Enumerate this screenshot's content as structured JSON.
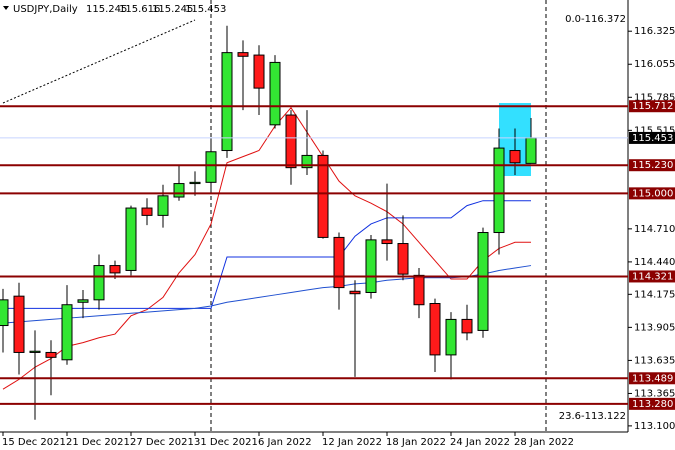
{
  "chart_data": {
    "type": "candlestick",
    "symbol": "USDJPY,Daily",
    "categories": [
      "15 Dec 2021",
      null,
      null,
      null,
      "21 Dec 2021",
      null,
      null,
      null,
      "27 Dec 2021",
      null,
      null,
      null,
      "31 Dec 2021",
      null,
      null,
      null,
      "6 Jan 2022",
      null,
      null,
      null,
      "12 Jan 2022",
      null,
      null,
      null,
      "18 Jan 2022",
      null,
      null,
      null,
      "24 Jan 2022",
      null,
      null,
      null,
      "28 Jan 2022",
      null
    ],
    "open": [
      113.92,
      114.16,
      113.7,
      113.7,
      113.64,
      114.11,
      114.13,
      114.41,
      114.37,
      114.88,
      114.82,
      114.97,
      115.08,
      115.09,
      115.35,
      116.15,
      116.13,
      115.56,
      115.64,
      115.21,
      115.31,
      114.64,
      114.2,
      114.19,
      114.62,
      114.59,
      114.33,
      114.1,
      113.68,
      113.97,
      113.88,
      114.68,
      115.35,
      115.245
    ],
    "high": [
      114.22,
      114.27,
      113.88,
      113.8,
      114.25,
      114.21,
      114.5,
      114.45,
      114.9,
      114.96,
      115.07,
      115.23,
      115.18,
      115.45,
      116.37,
      116.25,
      116.21,
      116.13,
      115.68,
      115.68,
      115.35,
      114.68,
      114.29,
      114.66,
      115.08,
      114.82,
      114.39,
      114.14,
      114.03,
      114.09,
      114.72,
      115.53,
      115.53,
      115.616
    ],
    "low": [
      113.7,
      113.52,
      113.15,
      113.35,
      113.6,
      113.98,
      114.05,
      114.3,
      114.33,
      114.74,
      114.72,
      114.94,
      114.98,
      115.03,
      115.29,
      115.68,
      115.64,
      115.53,
      115.07,
      115.15,
      114.63,
      114.05,
      113.5,
      114.14,
      114.45,
      114.29,
      113.98,
      113.54,
      113.48,
      113.8,
      113.82,
      114.5,
      115.15,
      115.245
    ],
    "close": [
      114.13,
      113.7,
      113.71,
      113.66,
      114.09,
      114.13,
      114.41,
      114.35,
      114.88,
      114.82,
      114.98,
      115.08,
      115.09,
      115.34,
      116.15,
      116.12,
      115.86,
      116.07,
      115.21,
      115.31,
      114.64,
      114.23,
      114.18,
      114.62,
      114.59,
      114.34,
      114.09,
      113.68,
      113.97,
      113.86,
      114.68,
      115.37,
      115.25,
      115.453
    ],
    "up_color": "#33e633",
    "down_color": "#ff1a1a",
    "overlays": [
      {
        "color": "#e01010",
        "values": [
          113.4,
          113.48,
          113.58,
          113.65,
          113.75,
          113.78,
          113.82,
          113.85,
          114.0,
          114.05,
          114.15,
          114.35,
          114.5,
          114.75,
          115.25,
          115.3,
          115.35,
          115.55,
          115.7,
          115.5,
          115.3,
          115.1,
          114.98,
          114.92,
          114.85,
          114.75,
          114.6,
          114.45,
          114.3,
          114.3,
          114.45,
          114.55,
          114.6,
          114.6
        ]
      },
      {
        "color": "#1030e0",
        "values": [
          114.06,
          114.06,
          114.06,
          114.06,
          114.06,
          114.06,
          114.06,
          114.06,
          114.06,
          114.06,
          114.06,
          114.06,
          114.06,
          114.06,
          114.48,
          114.48,
          114.48,
          114.48,
          114.48,
          114.48,
          114.48,
          114.48,
          114.65,
          114.75,
          114.8,
          114.8,
          114.8,
          114.8,
          114.8,
          114.9,
          114.94,
          114.94,
          114.94,
          114.94
        ]
      },
      {
        "color": "#2050d0",
        "values": [
          113.94,
          113.95,
          113.96,
          113.97,
          113.98,
          113.99,
          114.0,
          114.01,
          114.02,
          114.03,
          114.04,
          114.05,
          114.06,
          114.08,
          114.11,
          114.13,
          114.15,
          114.17,
          114.19,
          114.21,
          114.23,
          114.24,
          114.26,
          114.27,
          114.29,
          114.3,
          114.31,
          114.31,
          114.31,
          114.32,
          114.34,
          114.37,
          114.39,
          114.41
        ]
      }
    ],
    "levels": [
      115.712,
      {
        "value": 115.23,
        "label": "115.230"
      },
      {
        "value": 115,
        "label": "115.000"
      },
      114.321,
      113.489,
      {
        "value": 113.28,
        "label": "113.280"
      }
    ],
    "annotations": [
      "0.0-116.372",
      "23.6-113.122"
    ],
    "ylim": [
      113.05,
      116.58
    ],
    "yticks": [
      116.325,
      116.055,
      115.785,
      115.515,
      {
        "value": 114.71,
        "label": "114.710"
      },
      {
        "value": 114.44,
        "label": "114.440"
      },
      114.175,
      113.905,
      113.635,
      113.365,
      {
        "value": 113.1,
        "label": "113.100"
      }
    ]
  }
}
